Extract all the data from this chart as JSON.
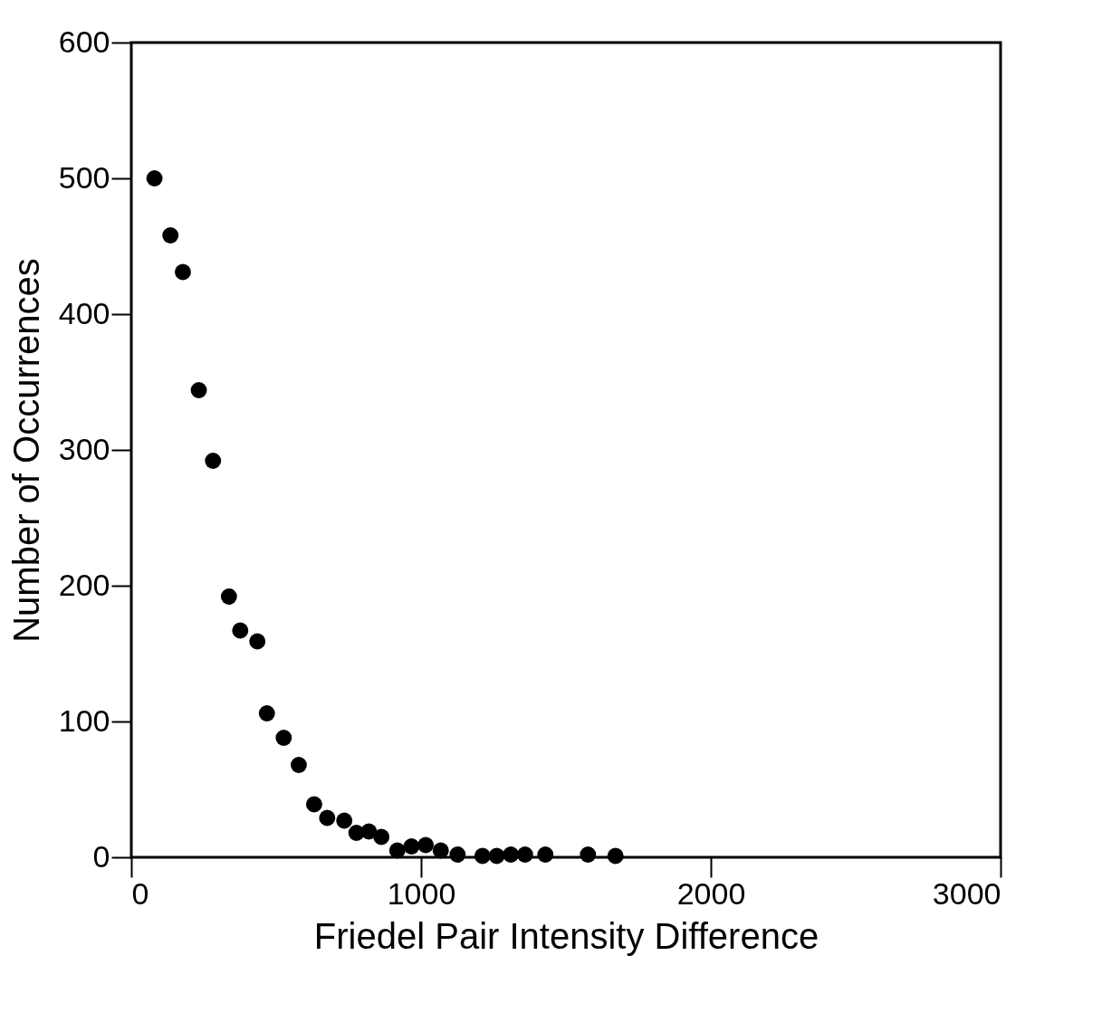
{
  "chart_data": {
    "type": "scatter",
    "xlabel": "Friedel Pair Intensity Difference",
    "ylabel": "Number of Occurrences",
    "x": [
      80,
      135,
      178,
      233,
      282,
      337,
      376,
      435,
      468,
      526,
      578,
      631,
      676,
      735,
      777,
      820,
      863,
      918,
      967,
      1016,
      1068,
      1126,
      1212,
      1261,
      1310,
      1359,
      1429,
      1576,
      1671
    ],
    "values": [
      500,
      458,
      431,
      344,
      292,
      192,
      167,
      159,
      106,
      88,
      68,
      39,
      29,
      27,
      18,
      19,
      15,
      5,
      8,
      9,
      5,
      2,
      1,
      1,
      2,
      2,
      2,
      2,
      1
    ],
    "color": "#000000",
    "marker": "circle",
    "grid": false,
    "xlim": [
      0,
      3000
    ],
    "ylim": [
      0,
      600
    ],
    "xticks": [
      0,
      1000,
      2000,
      3000
    ],
    "yticks": [
      0,
      100,
      200,
      300,
      400,
      500,
      600
    ]
  }
}
